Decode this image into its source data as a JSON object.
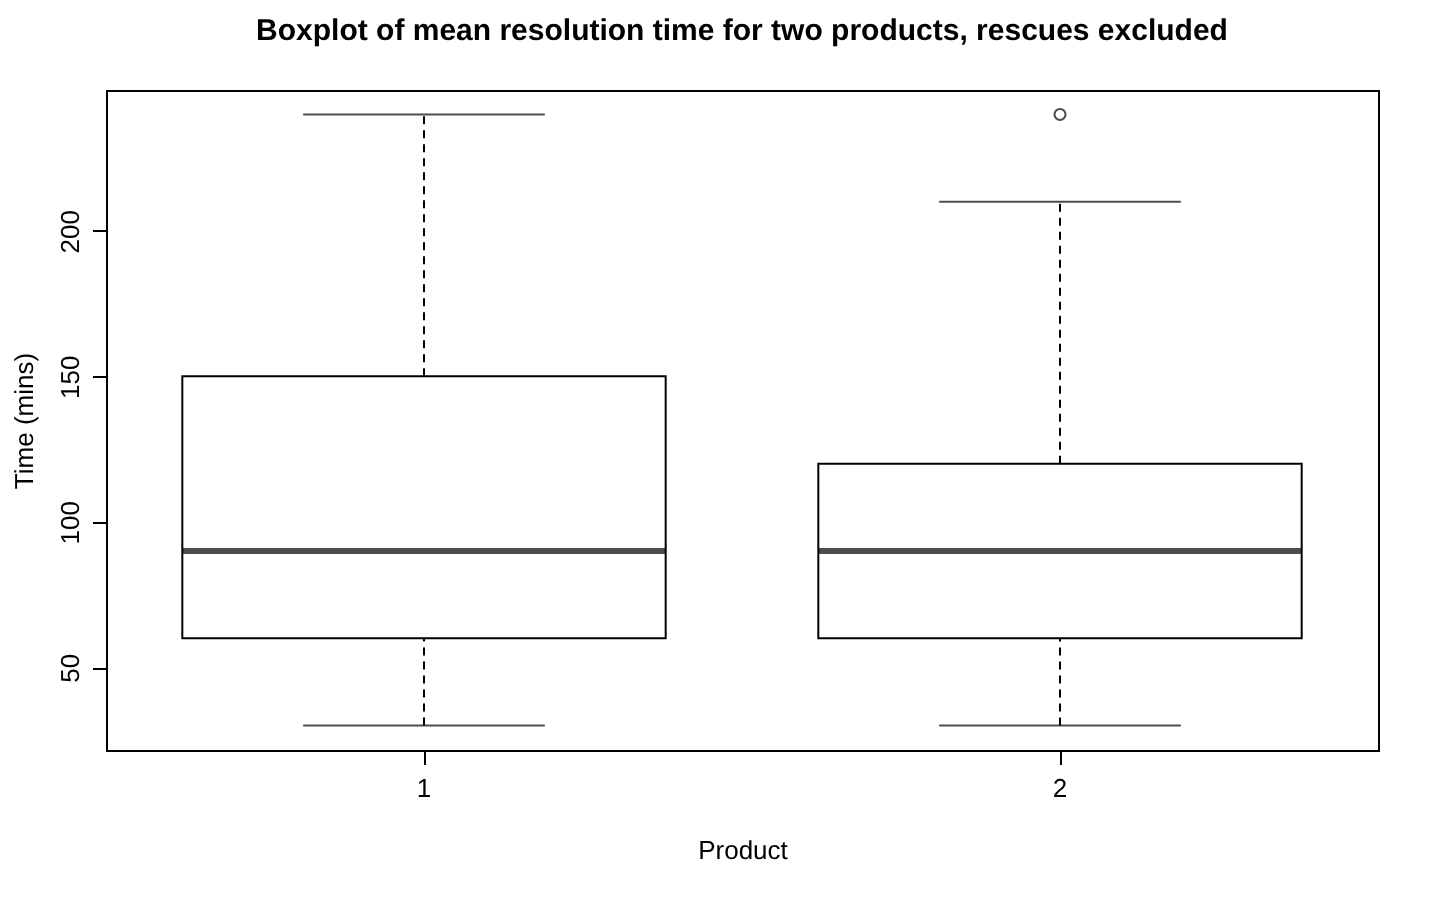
{
  "chart_data": {
    "type": "box",
    "title": "Boxplot of mean resolution time for two products, rescues excluded",
    "xlabel": "Product",
    "ylabel": "Time (mins)",
    "categories": [
      "1",
      "2"
    ],
    "boxes": [
      {
        "low": 30,
        "q1": 60,
        "median": 90,
        "q3": 150,
        "high": 240
      },
      {
        "low": 30,
        "q1": 60,
        "median": 90,
        "q3": 120,
        "high": 210,
        "outliers": [
          240
        ]
      }
    ],
    "ylim": [
      21.6,
      248.4
    ],
    "yticks": [
      50,
      100,
      150,
      200
    ],
    "marker": "circle"
  }
}
